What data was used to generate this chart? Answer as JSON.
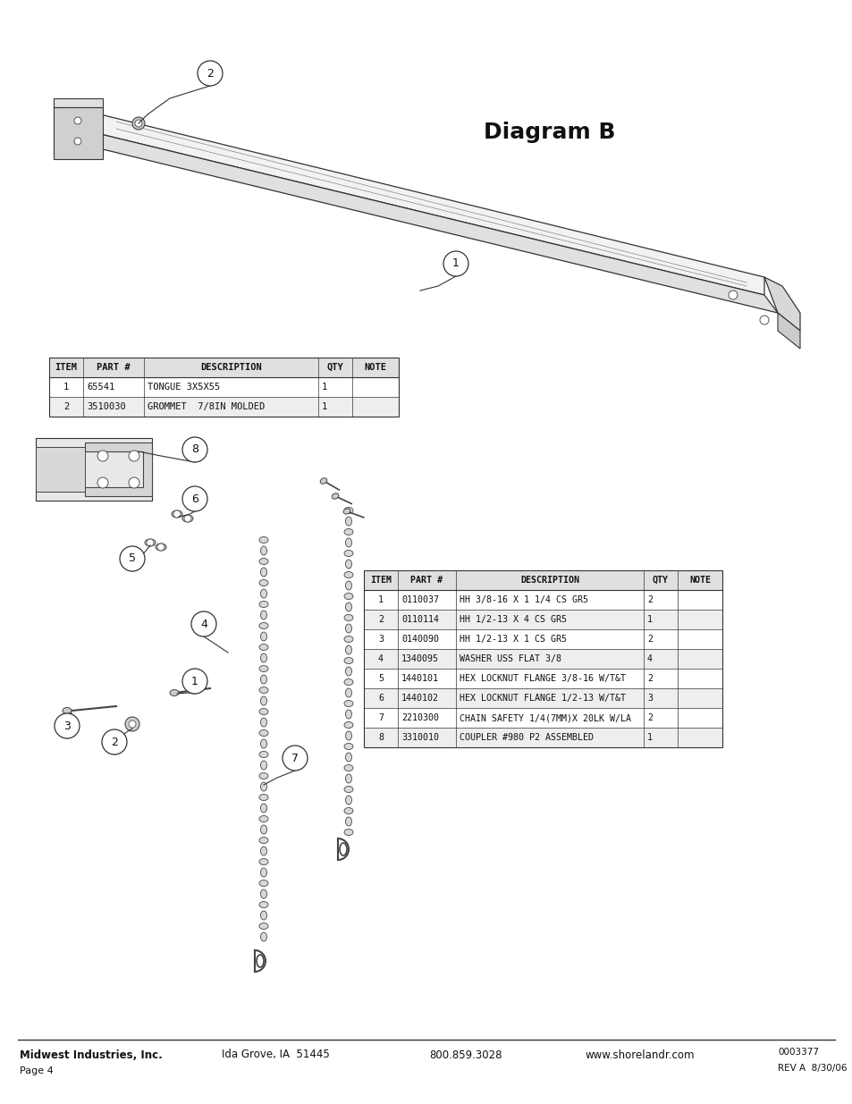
{
  "title": "Diagram B",
  "table1_headers": [
    "ITEM",
    "PART #",
    "DESCRIPTION",
    "QTY",
    "NOTE"
  ],
  "table1_col_widths": [
    38,
    68,
    195,
    38,
    52
  ],
  "table1_rows": [
    [
      "1",
      "65541",
      "TONGUE 3X5X55",
      "1",
      ""
    ],
    [
      "2",
      "3510030",
      "GROMMET  7/8IN MOLDED",
      "1",
      ""
    ]
  ],
  "table2_headers": [
    "ITEM",
    "PART #",
    "DESCRIPTION",
    "QTY",
    "NOTE"
  ],
  "table2_col_widths": [
    38,
    65,
    210,
    38,
    50
  ],
  "table2_rows": [
    [
      "1",
      "0110037",
      "HH 3/8-16 X 1 1/4 CS GR5",
      "2",
      ""
    ],
    [
      "2",
      "0110114",
      "HH 1/2-13 X 4 CS GR5",
      "1",
      ""
    ],
    [
      "3",
      "0140090",
      "HH 1/2-13 X 1 CS GR5",
      "2",
      ""
    ],
    [
      "4",
      "1340095",
      "WASHER USS FLAT 3/8",
      "4",
      ""
    ],
    [
      "5",
      "1440101",
      "HEX LOCKNUT FLANGE 3/8-16 W/T&T",
      "2",
      ""
    ],
    [
      "6",
      "1440102",
      "HEX LOCKNUT FLANGE 1/2-13 W/T&T",
      "3",
      ""
    ],
    [
      "7",
      "2210300",
      "CHAIN SAFETY 1/4(7MM)X 20LK W/LA",
      "2",
      ""
    ],
    [
      "8",
      "3310010",
      "COUPLER #980 P2 ASSEMBLED",
      "1",
      ""
    ]
  ],
  "footer_left_bold": "Midwest Industries, Inc.",
  "footer_city": "Ida Grove, IA  51445",
  "footer_phone": "800.859.3028",
  "footer_web": "www.shorelandr.com",
  "footer_doc": "0003377",
  "footer_rev": "REV A  8/30/06",
  "footer_page": "Page 4",
  "bg_color": "#ffffff"
}
